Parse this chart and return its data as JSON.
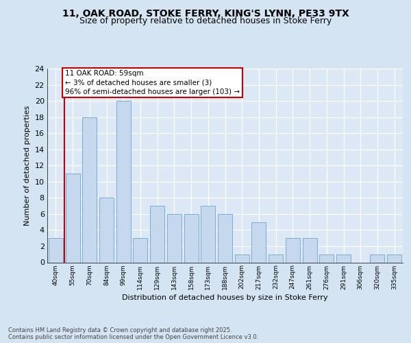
{
  "title1": "11, OAK ROAD, STOKE FERRY, KING'S LYNN, PE33 9TX",
  "title2": "Size of property relative to detached houses in Stoke Ferry",
  "xlabel": "Distribution of detached houses by size in Stoke Ferry",
  "ylabel": "Number of detached properties",
  "categories": [
    "40sqm",
    "55sqm",
    "70sqm",
    "84sqm",
    "99sqm",
    "114sqm",
    "129sqm",
    "143sqm",
    "158sqm",
    "173sqm",
    "188sqm",
    "202sqm",
    "217sqm",
    "232sqm",
    "247sqm",
    "261sqm",
    "276sqm",
    "291sqm",
    "306sqm",
    "320sqm",
    "335sqm"
  ],
  "values": [
    3,
    11,
    18,
    8,
    20,
    3,
    7,
    6,
    6,
    7,
    6,
    1,
    5,
    1,
    3,
    3,
    1,
    1,
    0,
    1,
    1
  ],
  "bar_color": "#c5d8ee",
  "bar_edge_color": "#7aadd4",
  "vline_color": "#cc0000",
  "vline_x": 0.5,
  "annotation_text": "11 OAK ROAD: 59sqm\n← 3% of detached houses are smaller (3)\n96% of semi-detached houses are larger (103) →",
  "annotation_box_facecolor": "#ffffff",
  "annotation_box_edgecolor": "#cc0000",
  "ylim": [
    0,
    24
  ],
  "yticks": [
    0,
    2,
    4,
    6,
    8,
    10,
    12,
    14,
    16,
    18,
    20,
    22,
    24
  ],
  "bg_color": "#d5e4f2",
  "plot_bg_color": "#dce8f5",
  "grid_color": "#ffffff",
  "title1_fontsize": 10,
  "title2_fontsize": 9,
  "ylabel_fontsize": 8,
  "xlabel_fontsize": 8,
  "tick_fontsize": 8,
  "xtick_fontsize": 6.5,
  "footer": "Contains HM Land Registry data © Crown copyright and database right 2025.\nContains public sector information licensed under the Open Government Licence v3.0."
}
